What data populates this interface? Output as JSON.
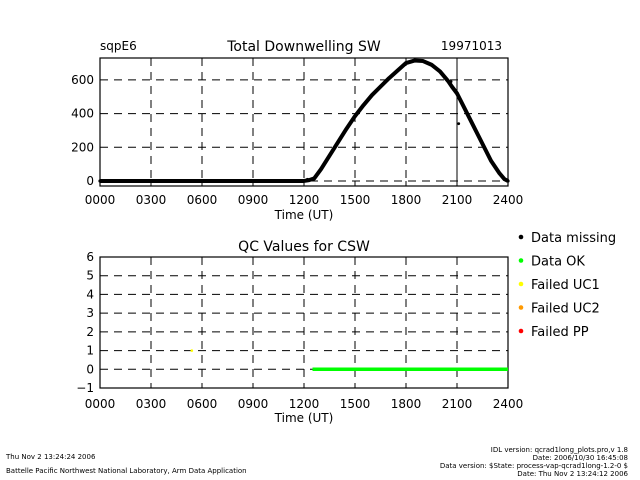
{
  "header": {
    "site": "sqpE6",
    "date": "19971013"
  },
  "chart_data": [
    {
      "type": "scatter",
      "title": "Total Downwelling SW",
      "xlabel": "Time (UT)",
      "ylabel": "",
      "xlim": [
        0,
        2400
      ],
      "ylim": [
        -30,
        730
      ],
      "x_ticks": [
        "0000",
        "0300",
        "0600",
        "0900",
        "1200",
        "1500",
        "1800",
        "2100",
        "2400"
      ],
      "y_ticks": [
        "0",
        "200",
        "400",
        "600"
      ],
      "y_tick_values": [
        0,
        200,
        400,
        600
      ],
      "grid": true,
      "grid_style": "dashed",
      "vertical_marker_x": 2100,
      "series": [
        {
          "color": "#000000",
          "x": [
            0,
            300,
            600,
            900,
            1200,
            1230,
            1260,
            1300,
            1350,
            1400,
            1450,
            1500,
            1550,
            1600,
            1650,
            1700,
            1750,
            1800,
            1850,
            1900,
            1950,
            2000,
            2050,
            2070,
            2100,
            2150,
            2200,
            2250,
            2300,
            2350,
            2380,
            2400
          ],
          "y": [
            0,
            0,
            0,
            0,
            0,
            5,
            15,
            70,
            150,
            230,
            310,
            385,
            450,
            510,
            560,
            610,
            655,
            700,
            715,
            712,
            690,
            650,
            590,
            560,
            520,
            420,
            320,
            220,
            120,
            45,
            10,
            0
          ]
        }
      ],
      "outliers": [
        {
          "x": 1220,
          "y": 10
        },
        {
          "x": 2110,
          "y": 340
        },
        {
          "x": 2065,
          "y": 590
        }
      ]
    },
    {
      "type": "scatter",
      "title": "QC Values for CSW",
      "xlabel": "Time (UT)",
      "ylabel": "",
      "xlim": [
        0,
        2400
      ],
      "ylim": [
        -1,
        6
      ],
      "x_ticks": [
        "0000",
        "0300",
        "0600",
        "0900",
        "1200",
        "1500",
        "1800",
        "2100",
        "2400"
      ],
      "y_ticks": [
        "−1",
        "0",
        "1",
        "2",
        "3",
        "4",
        "5",
        "6"
      ],
      "y_tick_values": [
        -1,
        0,
        1,
        2,
        3,
        4,
        5,
        6
      ],
      "grid": true,
      "grid_style": "dashed",
      "series": [
        {
          "name": "Data OK",
          "color": "#00ff00",
          "x_range": [
            1250,
            2400
          ],
          "y": 0
        },
        {
          "name": "Failed UC1",
          "color": "#ffff00",
          "points": [
            {
              "x": 540,
              "y": 1
            }
          ]
        }
      ]
    }
  ],
  "legend": {
    "placement": "right",
    "items": [
      {
        "label": "Data missing",
        "color": "#000000"
      },
      {
        "label": "Data OK",
        "color": "#00ff00"
      },
      {
        "label": "Failed UC1",
        "color": "#ffff00"
      },
      {
        "label": "Failed UC2",
        "color": "#ff9900"
      },
      {
        "label": "Failed PP",
        "color": "#ff0000"
      }
    ]
  },
  "footer": {
    "left_line1": "Thu Nov  2 13:24:24 2006",
    "left_line2": "Battelle Pacific Northwest National Laboratory, Arm Data Application",
    "right_line1": "IDL version: qcrad1long_plots.pro,v 1.8",
    "right_line2": "Date: 2006/10/30 16:45:08",
    "right_line3": "Data version: $State: process-vap-qcrad1long-1.2-0 $",
    "right_line4": "Date: Thu Nov  2 13:24:12 2006"
  }
}
